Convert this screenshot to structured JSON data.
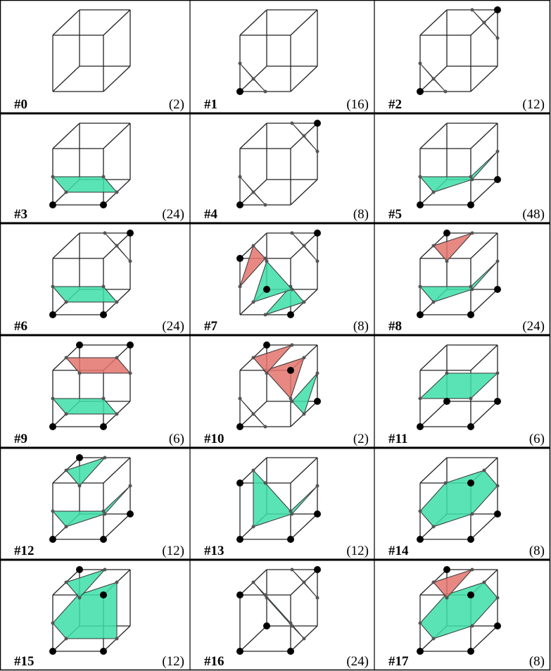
{
  "cells": [
    {
      "label": "#0",
      "count": "(2)"
    },
    {
      "label": "#1",
      "count": "(16)"
    },
    {
      "label": "#2",
      "count": "(12)"
    },
    {
      "label": "#3",
      "count": "(24)"
    },
    {
      "label": "#4",
      "count": "(8)"
    },
    {
      "label": "#5",
      "count": "(48)"
    },
    {
      "label": "#6",
      "count": "(24)"
    },
    {
      "label": "#7",
      "count": "(8)"
    },
    {
      "label": "#8",
      "count": "(24)"
    },
    {
      "label": "#9",
      "count": "(6)"
    },
    {
      "label": "#10",
      "count": "(2)"
    },
    {
      "label": "#11",
      "count": "(6)"
    },
    {
      "label": "#12",
      "count": "(12)"
    },
    {
      "label": "#13",
      "count": "(12)"
    },
    {
      "label": "#14",
      "count": "(8)"
    },
    {
      "label": "#15",
      "count": "(12)"
    },
    {
      "label": "#16",
      "count": "(24)"
    },
    {
      "label": "#17",
      "count": "(8)"
    }
  ]
}
